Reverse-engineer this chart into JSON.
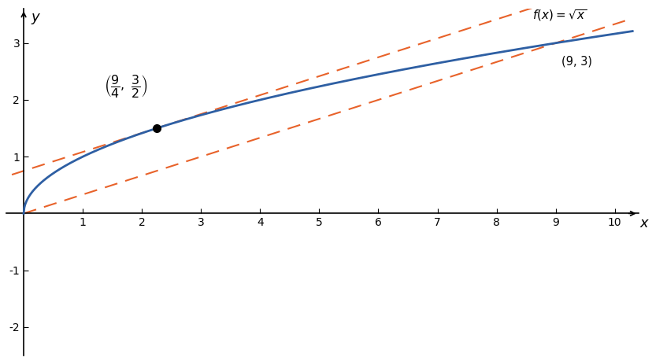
{
  "title": "",
  "xlabel": "x",
  "ylabel": "y",
  "xlim": [
    -0.3,
    10.4
  ],
  "ylim": [
    -2.5,
    3.6
  ],
  "x_ticks": [
    1,
    2,
    3,
    4,
    5,
    6,
    7,
    8,
    9,
    10
  ],
  "y_ticks": [
    -2,
    -1,
    1,
    2,
    3
  ],
  "func_color": "#2E5FA3",
  "line_color": "#E8622A",
  "background_color": "#ffffff",
  "dot_color": "#000000",
  "dot_size": 7,
  "func_linewidth": 2.0,
  "dashed_linewidth": 1.5,
  "slope_secant": 0.3333333333333333,
  "intercept_secant": 0.0,
  "slope_tangent": 0.3333333333333333,
  "intercept_tangent": 0.75,
  "tangent_point_x": 2.25,
  "tangent_point_y": 1.5,
  "x_func_end": 10.3
}
